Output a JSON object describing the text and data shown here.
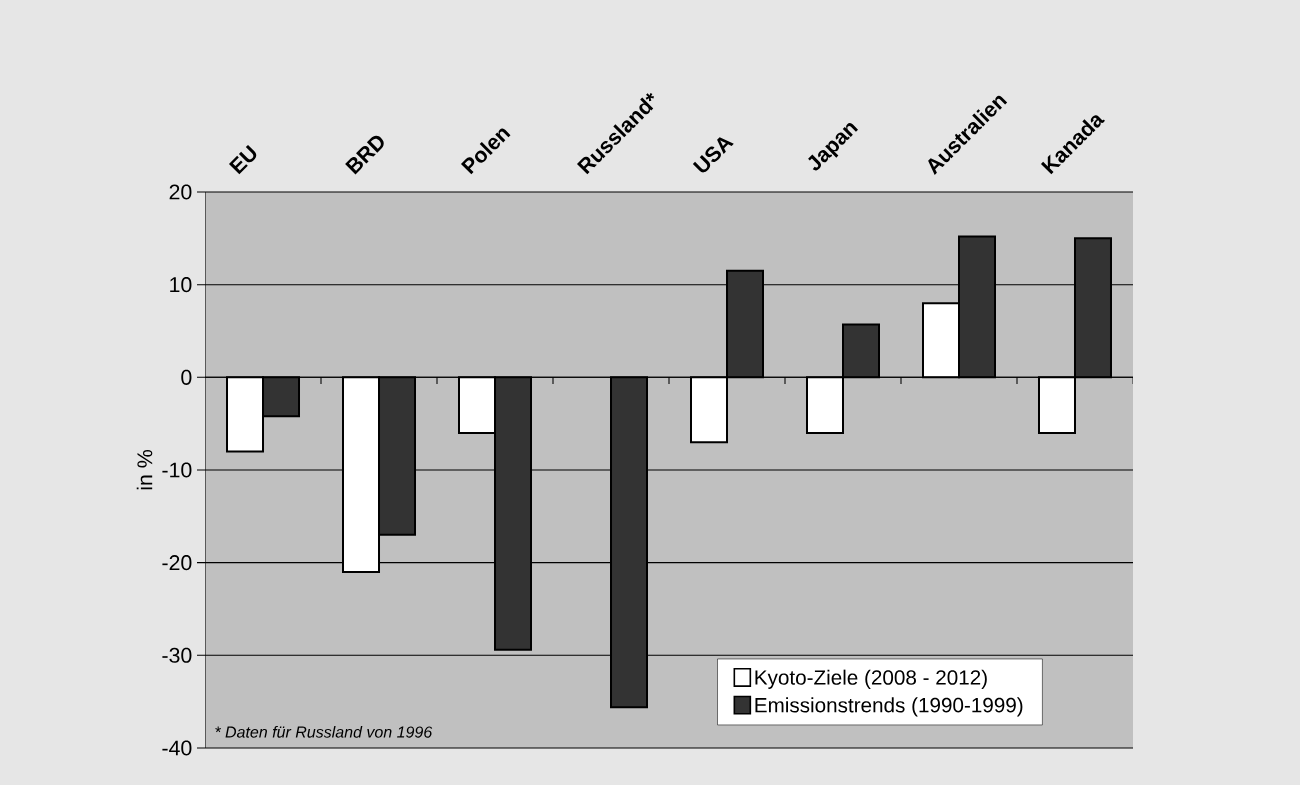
{
  "chart_data": {
    "type": "bar",
    "ylabel": "in %",
    "categories": [
      "EU",
      "BRD",
      "Polen",
      "Russland*",
      "USA",
      "Japan",
      "Australien",
      "Kanada"
    ],
    "series": [
      {
        "name": "Kyoto-Ziele (2008 - 2012)",
        "color": "#ffffff",
        "values": [
          -8,
          -21,
          -6,
          null,
          -7,
          -6,
          8,
          -6
        ]
      },
      {
        "name": "Emissionstrends (1990-1999)",
        "color": "#333333",
        "values": [
          -4.2,
          -17,
          -29.4,
          -35.6,
          11.5,
          5.7,
          15.2,
          15
        ]
      }
    ],
    "ylim": [
      -40,
      20
    ],
    "yticks": [
      -40,
      -30,
      -20,
      -10,
      0,
      10,
      20
    ],
    "grid": "y",
    "legend": "bottom right",
    "annotations": [
      "* Daten für Russland von 1996"
    ]
  }
}
